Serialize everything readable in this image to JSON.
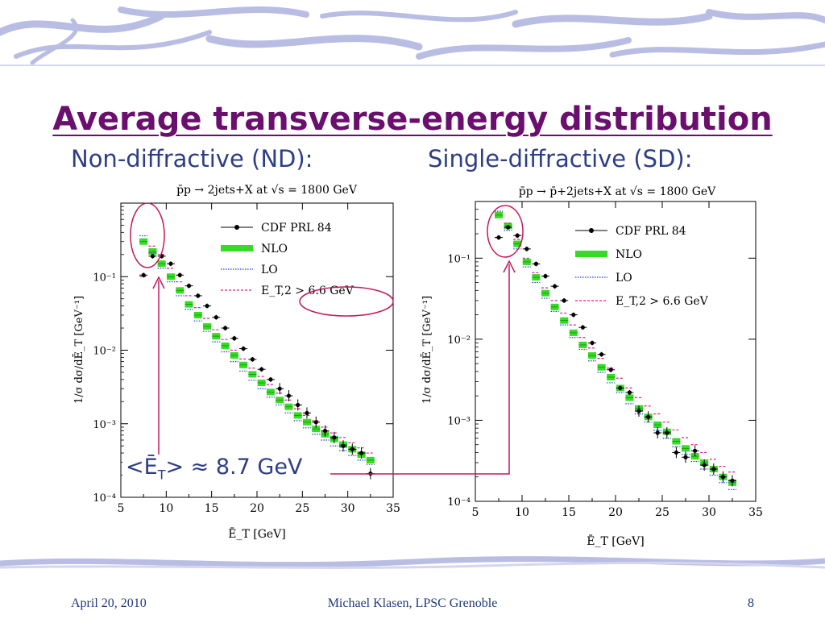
{
  "slide": {
    "title": "Average transverse-energy distribution",
    "subhead_nd": "Non-diffractive (ND):",
    "subhead_sd": "Single-diffractive (SD):",
    "annotation": "<Ē_T> ≈ 8.7 GeV",
    "annotation_color": "#c2185b",
    "footer_date": "April 20, 2010",
    "footer_author": "Michael Klasen, LPSC Grenoble",
    "footer_page": "8"
  },
  "colors": {
    "title": "#6a0f6e",
    "text": "#2d3e86",
    "deco": "#b9bde3",
    "nlo": "#33dd22",
    "lo": "#1f3fd6",
    "cut": "#e0208a"
  },
  "chart_data": [
    {
      "type": "scatter",
      "title": "p̄p → 2jets+X  at √s = 1800 GeV",
      "xlabel": "Ē_T  [GeV]",
      "ylabel": "1/σ dσ/dĒ_T [GeV⁻¹]",
      "xlim": [
        5,
        35
      ],
      "ylim": [
        0.0001,
        1
      ],
      "yscale": "log",
      "xticks": [
        "5",
        "10",
        "15",
        "20",
        "25",
        "30",
        "35"
      ],
      "yticks": [
        "10⁻¹",
        "10⁻²",
        "10⁻³",
        "10⁻⁴"
      ],
      "legend_position": "top-right",
      "series": [
        {
          "name": "CDF PRL 84",
          "marker": "point-errorbar",
          "x": [
            7.5,
            8.5,
            9.5,
            10.5,
            11.5,
            12.5,
            13.5,
            14.5,
            15.5,
            16.5,
            17.5,
            18.5,
            19.5,
            20.5,
            21.5,
            22.5,
            23.5,
            24.5,
            25.5,
            26.5,
            27.5,
            28.5,
            29.5,
            30.5,
            31.5,
            32.5
          ],
          "y": [
            0.105,
            0.19,
            0.19,
            0.15,
            0.105,
            0.075,
            0.055,
            0.04,
            0.028,
            0.02,
            0.0145,
            0.0105,
            0.0075,
            0.0055,
            0.004,
            0.003,
            0.0024,
            0.0018,
            0.0014,
            0.00105,
            0.0008,
            0.00065,
            0.0005,
            0.00045,
            0.0004,
            0.00021
          ]
        },
        {
          "name": "NLO",
          "marker": "band",
          "x": [
            7.5,
            8.5,
            9.5,
            10.5,
            11.5,
            12.5,
            13.5,
            14.5,
            15.5,
            16.5,
            17.5,
            18.5,
            19.5,
            20.5,
            21.5,
            22.5,
            23.5,
            24.5,
            25.5,
            26.5,
            27.5,
            28.5,
            29.5,
            30.5,
            31.5,
            32.5
          ],
          "y": [
            0.3,
            0.22,
            0.15,
            0.1,
            0.065,
            0.042,
            0.03,
            0.021,
            0.0155,
            0.0115,
            0.0085,
            0.0063,
            0.0047,
            0.0036,
            0.0027,
            0.0021,
            0.0017,
            0.0013,
            0.00105,
            0.00085,
            0.00072,
            0.00062,
            0.00052,
            0.00045,
            0.00038,
            0.00032
          ]
        },
        {
          "name": "LO",
          "marker": "dotted",
          "x": [
            7.5,
            8.5,
            9.5,
            10.5,
            11.5,
            12.5,
            13.5,
            14.5,
            15.5,
            16.5,
            17.5,
            18.5,
            19.5,
            20.5,
            21.5,
            22.5,
            23.5,
            24.5,
            25.5,
            26.5,
            27.5,
            28.5,
            29.5,
            30.5,
            31.5,
            32.5
          ],
          "y": [
            0.36,
            0.21,
            0.13,
            0.085,
            0.055,
            0.036,
            0.025,
            0.018,
            0.013,
            0.0095,
            0.007,
            0.0052,
            0.0039,
            0.003,
            0.0023,
            0.0018,
            0.0014,
            0.0011,
            0.00088,
            0.00072,
            0.0006,
            0.0005,
            0.00043,
            0.00037,
            0.00032,
            0.00028
          ]
        },
        {
          "name": "E_T,2 > 6.6 GeV",
          "marker": "dashed",
          "x": [
            7.5,
            8.5,
            9.5,
            10.5,
            11.5,
            12.5,
            13.5,
            14.5,
            15.5,
            16.5,
            17.5,
            18.5,
            19.5,
            20.5,
            21.5,
            22.5,
            23.5,
            24.5,
            25.5,
            26.5,
            27.5,
            28.5,
            29.5,
            30.5,
            31.5,
            32.5
          ],
          "y": [
            0.1,
            0.26,
            0.2,
            0.13,
            0.085,
            0.055,
            0.038,
            0.027,
            0.019,
            0.014,
            0.01,
            0.0076,
            0.0057,
            0.0044,
            0.0034,
            0.0026,
            0.0021,
            0.0016,
            0.0013,
            0.0011,
            0.0009,
            0.00075,
            0.00065,
            0.00055,
            0.00047,
            0.0004
          ]
        }
      ]
    },
    {
      "type": "scatter",
      "title": "p̄p → p̄+2jets+X  at √s = 1800 GeV",
      "xlabel": "Ē_T  [GeV]",
      "ylabel": "1/σ dσ/dĒ_T [GeV⁻¹]",
      "xlim": [
        5,
        35
      ],
      "ylim": [
        0.0001,
        0.5
      ],
      "yscale": "log",
      "xticks": [
        "5",
        "10",
        "15",
        "20",
        "25",
        "30",
        "35"
      ],
      "yticks": [
        "10⁻¹",
        "10⁻²",
        "10⁻³",
        "10⁻⁴"
      ],
      "legend_position": "top-right",
      "series": [
        {
          "name": "CDF PRL 84",
          "marker": "point-errorbar",
          "x": [
            7.5,
            8.5,
            9.5,
            10.5,
            11.5,
            12.5,
            13.5,
            14.5,
            15.5,
            16.5,
            17.5,
            18.5,
            19.5,
            20.5,
            21.5,
            22.5,
            23.5,
            24.5,
            25.5,
            26.5,
            27.5,
            28.5,
            29.5,
            30.5,
            31.5,
            32.5
          ],
          "y": [
            0.18,
            0.24,
            0.19,
            0.13,
            0.085,
            0.06,
            0.045,
            0.03,
            0.02,
            0.014,
            0.009,
            0.0065,
            0.0042,
            0.0025,
            0.0022,
            0.0013,
            0.0011,
            0.0007,
            0.0007,
            0.0004,
            0.00035,
            0.00042,
            0.00028,
            0.00025,
            0.0002,
            0.00018
          ]
        },
        {
          "name": "NLO",
          "marker": "band",
          "x": [
            7.5,
            8.5,
            9.5,
            10.5,
            11.5,
            12.5,
            13.5,
            14.5,
            15.5,
            16.5,
            17.5,
            18.5,
            19.5,
            20.5,
            21.5,
            22.5,
            23.5,
            24.5,
            25.5,
            26.5,
            27.5,
            28.5,
            29.5,
            30.5,
            31.5,
            32.5
          ],
          "y": [
            0.34,
            0.25,
            0.15,
            0.09,
            0.058,
            0.037,
            0.025,
            0.017,
            0.012,
            0.0085,
            0.0063,
            0.0045,
            0.0034,
            0.0025,
            0.0019,
            0.0014,
            0.0011,
            0.00088,
            0.00072,
            0.00055,
            0.00045,
            0.00036,
            0.0003,
            0.00025,
            0.0002,
            0.00017
          ]
        },
        {
          "name": "LO",
          "marker": "dotted",
          "x": [
            7.5,
            8.5,
            9.5,
            10.5,
            11.5,
            12.5,
            13.5,
            14.5,
            15.5,
            16.5,
            17.5,
            18.5,
            19.5,
            20.5,
            21.5,
            22.5,
            23.5,
            24.5,
            25.5,
            26.5,
            27.5,
            28.5,
            29.5,
            30.5,
            31.5,
            32.5
          ],
          "y": [
            0.38,
            0.22,
            0.13,
            0.078,
            0.05,
            0.032,
            0.022,
            0.015,
            0.0105,
            0.0075,
            0.0054,
            0.0039,
            0.0029,
            0.0022,
            0.0016,
            0.0012,
            0.00095,
            0.00075,
            0.0006,
            0.00047,
            0.00038,
            0.00031,
            0.00025,
            0.00021,
            0.00017,
            0.00014
          ]
        },
        {
          "name": "E_T,2 > 6.6 GeV",
          "marker": "dashed",
          "x": [
            7.5,
            8.5,
            9.5,
            10.5,
            11.5,
            12.5,
            13.5,
            14.5,
            15.5,
            16.5,
            17.5,
            18.5,
            19.5,
            20.5,
            21.5,
            22.5,
            23.5,
            24.5,
            25.5,
            26.5,
            27.5,
            28.5,
            29.5,
            30.5,
            31.5,
            32.5
          ],
          "y": [
            0.18,
            0.27,
            0.17,
            0.1,
            0.066,
            0.043,
            0.03,
            0.021,
            0.015,
            0.0105,
            0.0078,
            0.0058,
            0.0044,
            0.0033,
            0.0025,
            0.0019,
            0.0015,
            0.0012,
            0.00095,
            0.00076,
            0.00061,
            0.0005,
            0.0004,
            0.00033,
            0.00027,
            0.00023
          ]
        }
      ]
    }
  ]
}
